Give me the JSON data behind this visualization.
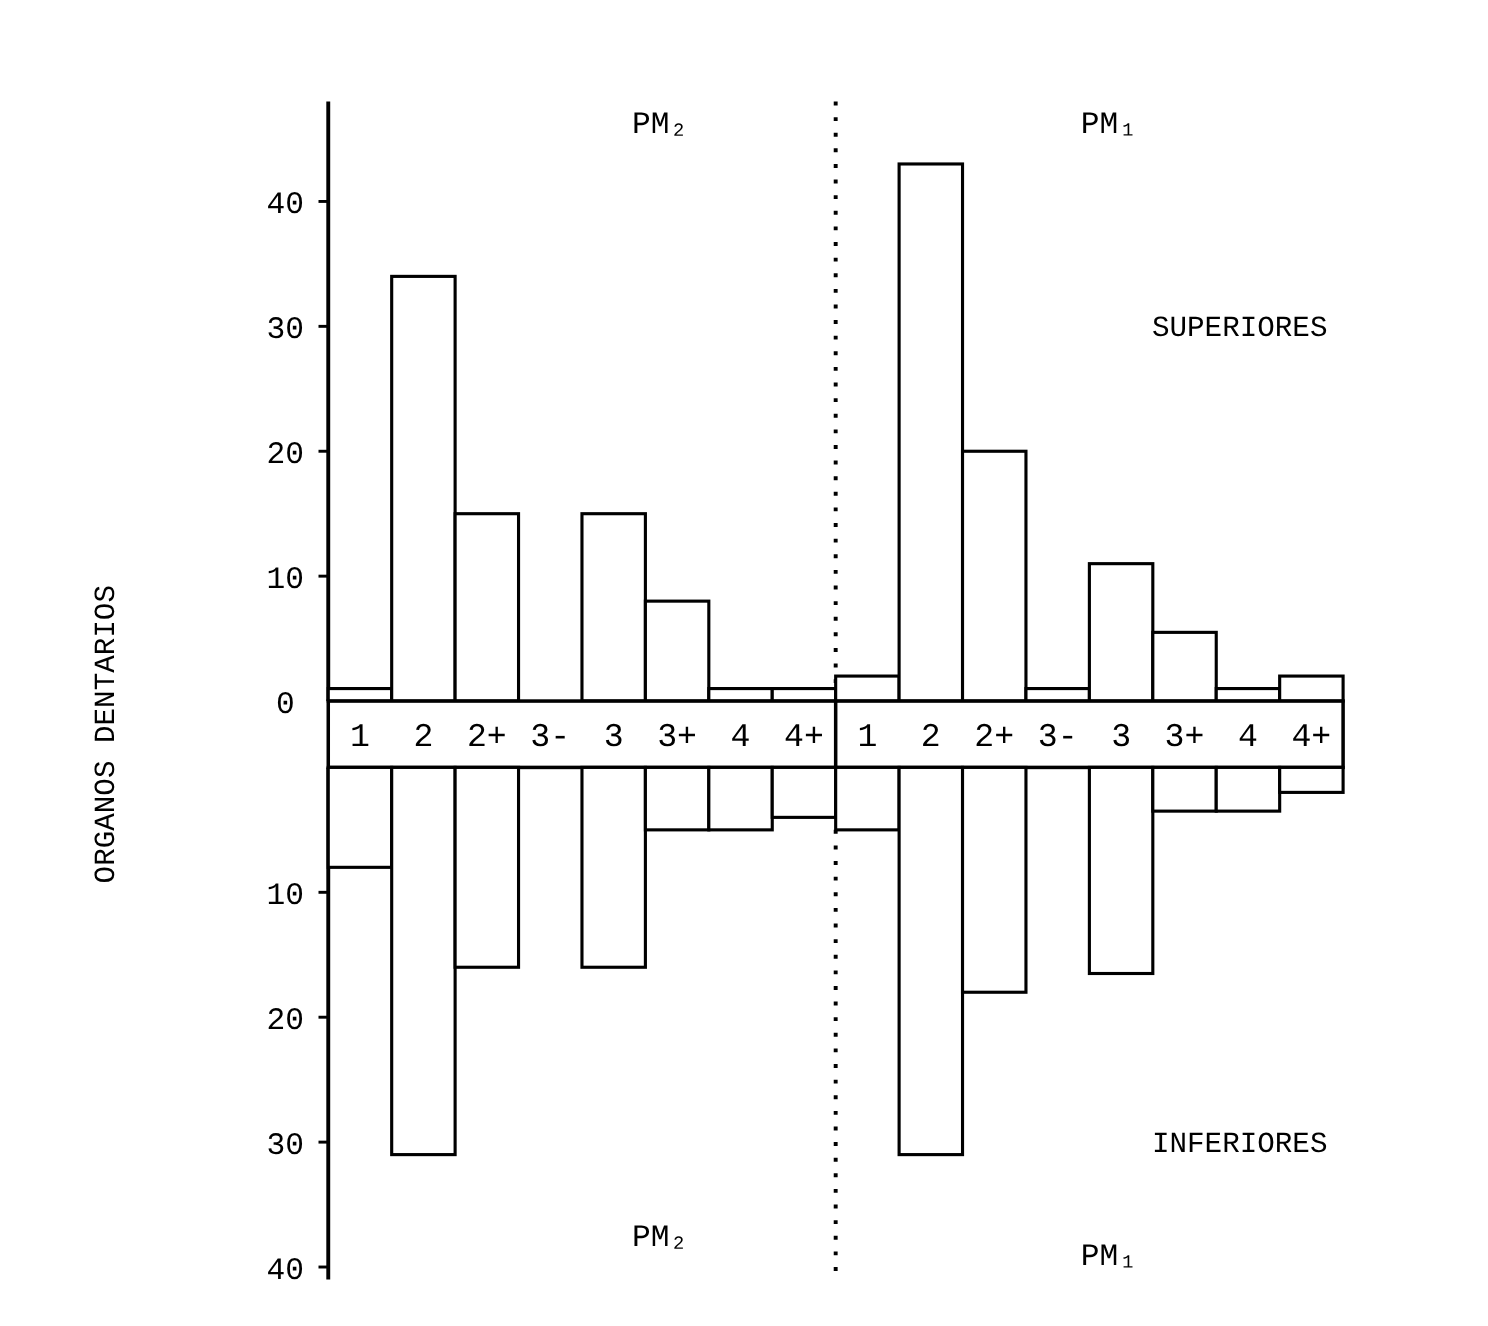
{
  "chart_data": [
    {
      "type": "bar",
      "ylabel": "ORGANOS DENTARIOS",
      "categories": [
        "1",
        "2",
        "2+",
        "3-",
        "3",
        "3+",
        "4",
        "4+",
        "1",
        "2",
        "2+",
        "3-",
        "3",
        "3+",
        "4",
        "4+"
      ],
      "series": [
        {
          "name": "SUPERIORES",
          "color": "#ffffff",
          "values": [
            1,
            34,
            15,
            0,
            15,
            8,
            1,
            1,
            2,
            43,
            20,
            1,
            11,
            5.5,
            1,
            2
          ]
        }
      ],
      "ylim": [
        0,
        48
      ],
      "yticks": [
        0,
        10,
        20,
        30,
        40
      ],
      "annotations": [
        "PM₂",
        "PM₁"
      ]
    },
    {
      "type": "bar",
      "categories": [
        null,
        null,
        null,
        null,
        null,
        null,
        null,
        null,
        null,
        null,
        null,
        null,
        null,
        null,
        null,
        null
      ],
      "series": [
        {
          "name": "INFERIORES",
          "color": "#ffffff",
          "values": [
            8,
            31,
            16,
            0,
            16,
            5,
            5,
            4,
            5,
            31,
            18,
            0,
            16.5,
            3.5,
            3.5,
            2
          ]
        }
      ],
      "ylim": [
        41,
        0
      ],
      "yticks": [
        10,
        20,
        30,
        40
      ],
      "tick_labels": "y",
      "annotations": [
        "PM₂",
        "PM₁"
      ]
    }
  ]
}
